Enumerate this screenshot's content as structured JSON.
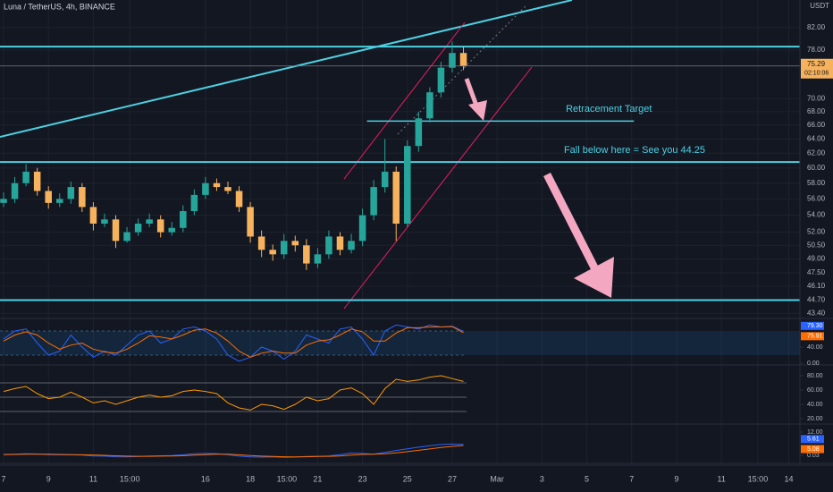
{
  "chart_data": {
    "type": "candlestick",
    "title": "Luna / TetherUS, 4h, BINANCE",
    "currency": "USDT",
    "log_scale": true,
    "grid": true,
    "up_color": "#26a69a",
    "down_color": "#f6b25c",
    "x": [
      7,
      7.5,
      8,
      8.5,
      9,
      9.5,
      10,
      10.5,
      11,
      11.5,
      12,
      12.5,
      13,
      13.5,
      14,
      14.5,
      15,
      15.5,
      16,
      16.5,
      17,
      17.5,
      18,
      18.5,
      19,
      19.5,
      20,
      20.5,
      21,
      21.5,
      22,
      22.5,
      23,
      23.5,
      24,
      24.5,
      25,
      25.5,
      26,
      26.5,
      27,
      27.5
    ],
    "open": [
      55.5,
      56,
      58,
      59.5,
      57,
      55.5,
      56,
      57.5,
      55,
      53,
      53.5,
      51,
      52,
      53,
      53.5,
      52,
      52.5,
      54.5,
      56.5,
      58,
      57.5,
      57,
      55,
      51.5,
      50,
      49.5,
      51,
      50.5,
      48.5,
      49.5,
      51.5,
      50,
      51,
      54,
      57.5,
      59.5,
      53,
      63,
      67,
      71,
      75,
      77.5
    ],
    "high": [
      56.8,
      58.8,
      60.5,
      60,
      57.6,
      56.7,
      58.2,
      58,
      55.6,
      54.2,
      54,
      52.6,
      53.6,
      54.2,
      54,
      53.2,
      55.2,
      57.2,
      58.8,
      58.6,
      58.2,
      57.6,
      55.6,
      52.2,
      50.6,
      51.8,
      51.6,
      51.2,
      50.2,
      52.2,
      52,
      51.8,
      54.8,
      58.4,
      64,
      60.2,
      63.8,
      68,
      71.8,
      76,
      79.5,
      78.6
    ],
    "low": [
      55,
      55.5,
      57.6,
      56.4,
      54.8,
      55,
      55.4,
      54.4,
      52.2,
      52.6,
      50.2,
      50.8,
      51.6,
      52.6,
      51.4,
      51.6,
      52,
      54,
      56,
      57,
      56.6,
      54.4,
      50.8,
      49.2,
      48.8,
      49,
      49.8,
      47.8,
      48,
      49,
      49.4,
      49.6,
      50.4,
      53.4,
      56.8,
      51,
      52.6,
      62.2,
      66.4,
      70.2,
      74.2,
      74.6
    ],
    "close": [
      56,
      58,
      59.5,
      57,
      55.5,
      56,
      57.5,
      55,
      53,
      53.5,
      51,
      52,
      53,
      53.5,
      52,
      52.5,
      54.5,
      56.5,
      58,
      57.5,
      57,
      55,
      51.5,
      50,
      49.5,
      51,
      50.5,
      48.5,
      49.5,
      51.5,
      50,
      51,
      54,
      57.5,
      59.5,
      53,
      63,
      67,
      71,
      75,
      77.5,
      75.29
    ],
    "countdown": "02:10:06",
    "xlim": [
      6.84,
      42.5
    ],
    "ylim": [
      43.0,
      87.2
    ],
    "xticks": [
      7,
      9,
      11,
      {
        "value": 12.625,
        "label": "15:00"
      },
      16,
      18,
      {
        "value": 19.625,
        "label": "15:00"
      },
      21,
      23,
      25,
      27,
      {
        "value": 29,
        "label": "Mar"
      },
      {
        "value": 31,
        "label": "3"
      },
      {
        "value": 33,
        "label": "5"
      },
      {
        "value": 35,
        "label": "7"
      },
      {
        "value": 37,
        "label": "9"
      },
      {
        "value": 39,
        "label": "11"
      },
      {
        "value": 40.625,
        "label": "15:00"
      },
      {
        "value": 42,
        "label": "14"
      }
    ],
    "yticks": [
      {
        "value": 82,
        "label": "82.00"
      },
      {
        "value": 78,
        "label": "78.00"
      },
      {
        "value": 70,
        "label": "70.00"
      },
      {
        "value": 68,
        "label": "68.00"
      },
      {
        "value": 66,
        "label": "66.00"
      },
      {
        "value": 64,
        "label": "64.00"
      },
      {
        "value": 62,
        "label": "62.00"
      },
      {
        "value": 60,
        "label": "60.00"
      },
      {
        "value": 58,
        "label": "58.00"
      },
      {
        "value": 56,
        "label": "56.00"
      },
      {
        "value": 54,
        "label": "54.00"
      },
      {
        "value": 52,
        "label": "52.00"
      },
      {
        "value": 50.5,
        "label": "50.50"
      },
      {
        "value": 49,
        "label": "49.00"
      },
      {
        "value": 47.5,
        "label": "47.50"
      },
      {
        "value": 46.1,
        "label": "46.10"
      },
      {
        "value": 44.7,
        "label": "44.70"
      },
      {
        "value": 43.4,
        "label": "43.40"
      }
    ],
    "levels": [
      78.6,
      60.8,
      44.7
    ],
    "annotations": [
      {
        "text": "Retracement Target",
        "value": 66.6,
        "x": [
          23.2,
          35.1
        ]
      },
      {
        "text": "Fall below here = See you 44.25"
      }
    ],
    "indicators": [
      {
        "ylim": [
          -2.2,
          106.7
        ],
        "yticks": [
          {
            "value": 40,
            "label": "40.00"
          },
          {
            "value": 0,
            "label": "0.00"
          }
        ],
        "bands": [
          20,
          80
        ],
        "series": [
          {
            "color": "#2962ff",
            "last_label": "79.30",
            "values": [
              60,
              80,
              85,
              50,
              20,
              30,
              70,
              40,
              15,
              30,
              20,
              45,
              70,
              80,
              50,
              60,
              85,
              90,
              80,
              60,
              20,
              5,
              15,
              40,
              30,
              10,
              30,
              70,
              60,
              50,
              85,
              90,
              60,
              20,
              80,
              95,
              90,
              85,
              95,
              90,
              92,
              79.3
            ]
          },
          {
            "color": "#ff6d00",
            "last_label": "75.91",
            "values": [
              55,
              70,
              78,
              70,
              50,
              35,
              45,
              50,
              35,
              28,
              25,
              35,
              50,
              68,
              65,
              60,
              70,
              82,
              85,
              75,
              55,
              30,
              15,
              25,
              30,
              25,
              25,
              45,
              55,
              58,
              70,
              85,
              78,
              55,
              55,
              75,
              88,
              88,
              90,
              90,
              91,
              75.91
            ]
          }
        ]
      },
      {
        "ylim": [
          15,
          92.5
        ],
        "yticks": [
          {
            "value": 80,
            "label": "80.00"
          },
          {
            "value": 60,
            "label": "60.00"
          },
          {
            "value": 40,
            "label": "40.00"
          },
          {
            "value": 20,
            "label": "20.00"
          }
        ],
        "bands": [
          30,
          50,
          70
        ],
        "series": [
          {
            "color": "#ff9800",
            "values": [
              58,
              62,
              65,
              55,
              48,
              50,
              57,
              50,
              42,
              45,
              40,
              45,
              50,
              53,
              50,
              52,
              58,
              60,
              58,
              55,
              42,
              35,
              32,
              40,
              38,
              33,
              40,
              50,
              45,
              48,
              60,
              63,
              55,
              40,
              62,
              75,
              72,
              74,
              78,
              80,
              76,
              72
            ]
          }
        ]
      },
      {
        "ylim": [
          -3.2,
          15.2
        ],
        "yticks": [
          {
            "value": 12,
            "label": "12.00"
          },
          {
            "value": 0.03,
            "label": "0.03"
          }
        ],
        "bands": [],
        "series": [
          {
            "color": "#2962ff",
            "last_label": "5.61",
            "values": [
              0.5,
              0.6,
              0.8,
              0.7,
              0.4,
              0.3,
              0.3,
              0.1,
              -0.3,
              -0.4,
              -0.7,
              -0.8,
              -0.6,
              -0.3,
              -0.2,
              -0.1,
              0.3,
              0.8,
              1.0,
              0.9,
              0.3,
              -0.4,
              -0.8,
              -0.9,
              -0.8,
              -1.0,
              -0.9,
              -0.6,
              -0.5,
              -0.3,
              0.4,
              1.2,
              1.0,
              0.6,
              1.5,
              2.5,
              3.4,
              4.2,
              5.0,
              5.6,
              5.8,
              5.61
            ]
          },
          {
            "color": "#ff6d00",
            "last_label": "5.08",
            "values": [
              0.4,
              0.5,
              0.6,
              0.6,
              0.6,
              0.5,
              0.4,
              0.3,
              0.2,
              0.0,
              -0.2,
              -0.4,
              -0.5,
              -0.5,
              -0.4,
              -0.3,
              -0.2,
              0.1,
              0.4,
              0.6,
              0.6,
              0.3,
              -0.1,
              -0.4,
              -0.6,
              -0.7,
              -0.8,
              -0.7,
              -0.6,
              -0.5,
              -0.3,
              0.1,
              0.5,
              0.6,
              0.8,
              1.3,
              1.9,
              2.6,
              3.3,
              4.0,
              4.6,
              5.08
            ]
          }
        ]
      }
    ]
  }
}
